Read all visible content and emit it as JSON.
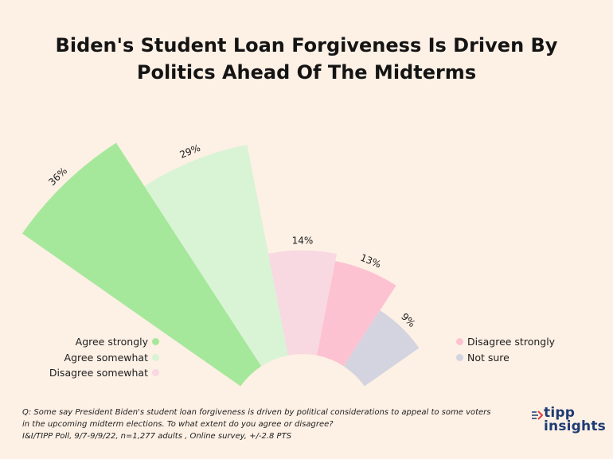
{
  "chart_data": {
    "type": "radial-bar",
    "title_lines": [
      "Biden's Student Loan Forgiveness Is Driven By",
      "Politics Ahead Of The Midterms"
    ],
    "categories": [
      "Agree strongly",
      "Agree somewhat",
      "Disagree somewhat",
      "Disagree strongly",
      "Not sure"
    ],
    "values": [
      36,
      29,
      14,
      13,
      9
    ],
    "value_labels": [
      "36%",
      "29%",
      "14%",
      "13%",
      "9%"
    ],
    "colors": [
      "#a6e89b",
      "#d8f4d5",
      "#f8d8e1",
      "#fdc2d1",
      "#d3d4e0"
    ],
    "legend_placement": "split left/right, bottom"
  },
  "legend": {
    "left": [
      {
        "label": "Agree strongly",
        "color": "#a6e89b"
      },
      {
        "label": "Agree somewhat",
        "color": "#d8f4d5"
      },
      {
        "label": "Disagree somewhat",
        "color": "#f8d8e1"
      }
    ],
    "right": [
      {
        "label": "Disagree strongly",
        "color": "#fdc2d1"
      },
      {
        "label": "Not sure",
        "color": "#d3d4e0"
      }
    ]
  },
  "footnote": {
    "line1": "Q:  Some say President Biden's student loan forgiveness is driven by political considerations to appeal to some voters",
    "line2": "in the upcoming midterm elections. To what extent do you agree or disagree?",
    "line3": "I&I/TIPP Poll, 9/7-9/9/22, n=1,277 adults , Online survey, +/-2.8 PTS"
  },
  "logo": {
    "line1": "tipp",
    "line2": "insights",
    "color": "#1f3b73",
    "icon": "arrow-icon"
  }
}
